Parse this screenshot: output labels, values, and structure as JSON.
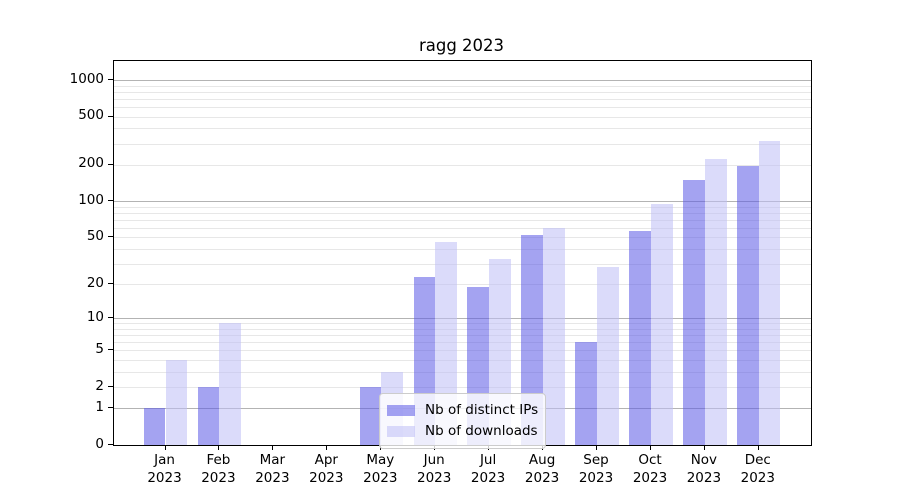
{
  "chart_data": {
    "type": "bar",
    "title": "ragg 2023",
    "categories": [
      "Jan 2023",
      "Feb 2023",
      "Mar 2023",
      "Apr 2023",
      "May 2023",
      "Jun 2023",
      "Jul 2023",
      "Aug 2023",
      "Sep 2023",
      "Oct 2023",
      "Nov 2023",
      "Dec 2023"
    ],
    "series": [
      {
        "name": "Nb of distinct IPs",
        "color": "#5A58E68C",
        "values": [
          1,
          2,
          0,
          0,
          2,
          23,
          19,
          52,
          6,
          56,
          150,
          194
        ]
      },
      {
        "name": "Nb of downloads",
        "color": "#BEBEF58C",
        "values": [
          4,
          9,
          0,
          0,
          3,
          46,
          33,
          60,
          28,
          95,
          223,
          314
        ]
      }
    ],
    "xlabel": "",
    "ylabel": "",
    "yscale": "log1p",
    "ylim": [
      0,
      1434
    ],
    "y_ticks": [
      0,
      1,
      2,
      5,
      10,
      20,
      50,
      100,
      200,
      500,
      1000
    ],
    "y_minor_gridlines": [
      2,
      3,
      4,
      5,
      6,
      7,
      8,
      9,
      20,
      30,
      40,
      50,
      60,
      70,
      80,
      90,
      200,
      300,
      400,
      500,
      600,
      700,
      800,
      900
    ],
    "y_major_gridlines": [
      1,
      10,
      100,
      1000
    ],
    "grid": "on",
    "legend_position": "inside lower center",
    "colors": {
      "axis": "#000000",
      "major_grid": "#b3b3b3",
      "minor_grid": "#e7e7e7",
      "legend_border": "#cccccc"
    }
  }
}
